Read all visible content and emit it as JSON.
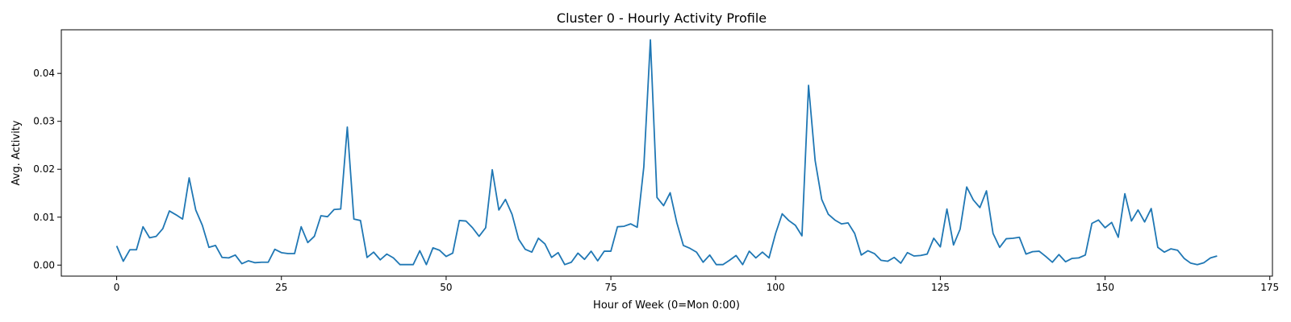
{
  "chart_data": {
    "type": "line",
    "title": "Cluster 0 - Hourly Activity Profile",
    "xlabel": "Hour of Week (0=Mon 0:00)",
    "ylabel": "Avg. Activity",
    "xlim": [
      -8.4,
      175.4
    ],
    "ylim": [
      -0.0023,
      0.0491
    ],
    "xticks": [
      0,
      25,
      50,
      75,
      100,
      125,
      150,
      175
    ],
    "xtick_labels": [
      "0",
      "25",
      "50",
      "75",
      "100",
      "125",
      "150",
      "175"
    ],
    "yticks": [
      0.0,
      0.01,
      0.02,
      0.03,
      0.04
    ],
    "ytick_labels": [
      "0.00",
      "0.01",
      "0.02",
      "0.03",
      "0.04"
    ],
    "grid": false,
    "series": [
      {
        "color": "#1f77b4",
        "x": [
          0,
          1,
          2,
          3,
          4,
          5,
          6,
          7,
          8,
          9,
          10,
          11,
          12,
          13,
          14,
          15,
          16,
          17,
          18,
          19,
          20,
          21,
          22,
          23,
          24,
          25,
          26,
          27,
          28,
          29,
          30,
          31,
          32,
          33,
          34,
          35,
          36,
          37,
          38,
          39,
          40,
          41,
          42,
          43,
          44,
          45,
          46,
          47,
          48,
          49,
          50,
          51,
          52,
          53,
          54,
          55,
          56,
          57,
          58,
          59,
          60,
          61,
          62,
          63,
          64,
          65,
          66,
          67,
          68,
          69,
          70,
          71,
          72,
          73,
          74,
          75,
          76,
          77,
          78,
          79,
          80,
          81,
          82,
          83,
          84,
          85,
          86,
          87,
          88,
          89,
          90,
          91,
          92,
          93,
          94,
          95,
          96,
          97,
          98,
          99,
          100,
          101,
          102,
          103,
          104,
          105,
          106,
          107,
          108,
          109,
          110,
          111,
          112,
          113,
          114,
          115,
          116,
          117,
          118,
          119,
          120,
          121,
          122,
          123,
          124,
          125,
          126,
          127,
          128,
          129,
          130,
          131,
          132,
          133,
          134,
          135,
          136,
          137,
          138,
          139,
          140,
          141,
          142,
          143,
          144,
          145,
          146,
          147,
          148,
          149,
          150,
          151,
          152,
          153,
          154,
          155,
          156,
          157,
          158,
          159,
          160,
          161,
          162,
          163,
          164,
          165,
          166,
          167
        ],
        "values": [
          0.004,
          0.0008,
          0.0032,
          0.0032,
          0.008,
          0.0057,
          0.006,
          0.0076,
          0.0113,
          0.0105,
          0.0096,
          0.0182,
          0.0115,
          0.0083,
          0.0037,
          0.0041,
          0.0016,
          0.0015,
          0.0021,
          0.0003,
          0.0009,
          0.0005,
          0.0006,
          0.0006,
          0.0033,
          0.0026,
          0.0024,
          0.0024,
          0.008,
          0.0047,
          0.006,
          0.0103,
          0.0101,
          0.0116,
          0.0117,
          0.0288,
          0.0096,
          0.0093,
          0.0016,
          0.0027,
          0.0011,
          0.0023,
          0.0015,
          0.0001,
          0.0001,
          0.0001,
          0.003,
          0.0001,
          0.0036,
          0.0031,
          0.0018,
          0.0025,
          0.0093,
          0.0092,
          0.0078,
          0.006,
          0.0078,
          0.0199,
          0.0115,
          0.0137,
          0.0106,
          0.0054,
          0.0033,
          0.0027,
          0.0056,
          0.0044,
          0.0016,
          0.0026,
          0.0001,
          0.0006,
          0.0025,
          0.0012,
          0.0029,
          0.0009,
          0.0029,
          0.0029,
          0.008,
          0.0081,
          0.0086,
          0.0079,
          0.0205,
          0.047,
          0.0141,
          0.0124,
          0.0151,
          0.0089,
          0.0041,
          0.0035,
          0.0027,
          0.0006,
          0.0021,
          0.0001,
          0.0001,
          0.001,
          0.002,
          0.0001,
          0.0029,
          0.0015,
          0.0027,
          0.0015,
          0.0066,
          0.0107,
          0.0093,
          0.0083,
          0.0061,
          0.0375,
          0.0218,
          0.0137,
          0.0106,
          0.0094,
          0.0086,
          0.0088,
          0.0066,
          0.0021,
          0.003,
          0.0024,
          0.001,
          0.0008,
          0.0016,
          0.0004,
          0.0026,
          0.0019,
          0.002,
          0.0023,
          0.0056,
          0.0038,
          0.0117,
          0.0042,
          0.0075,
          0.0163,
          0.0136,
          0.012,
          0.0155,
          0.0066,
          0.0037,
          0.0055,
          0.0056,
          0.0058,
          0.0023,
          0.0028,
          0.0029,
          0.0018,
          0.0006,
          0.0022,
          0.0007,
          0.0014,
          0.0015,
          0.0021,
          0.0087,
          0.0094,
          0.0078,
          0.0089,
          0.0058,
          0.0149,
          0.0092,
          0.0115,
          0.009,
          0.0118,
          0.0037,
          0.0027,
          0.0034,
          0.0031,
          0.0014,
          0.0004,
          0.0001,
          0.0005,
          0.0015,
          0.0019
        ]
      }
    ]
  }
}
